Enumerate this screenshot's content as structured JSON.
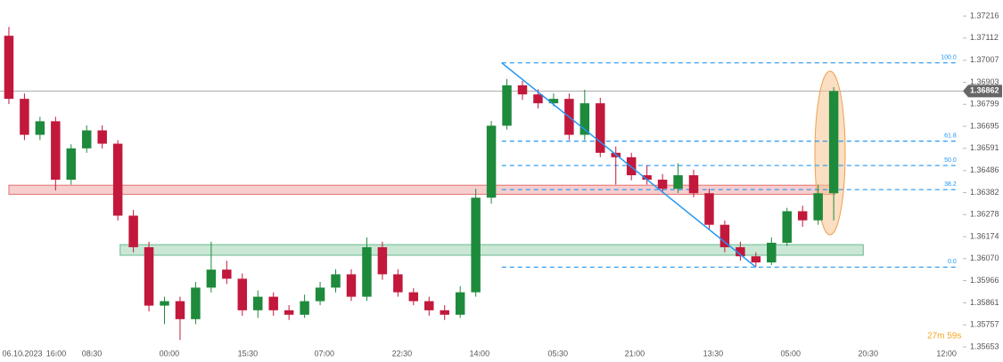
{
  "chart_data": {
    "type": "candlestick",
    "open": [
      1.37123,
      1.36825,
      1.36655,
      1.36719,
      1.36443,
      1.36591,
      1.36676,
      1.36613,
      1.36273,
      1.36124,
      1.35848,
      1.35869,
      1.35784,
      1.35933,
      1.36018,
      1.35975,
      1.35826,
      1.3589,
      1.35826,
      1.35805,
      1.35869,
      1.35933,
      1.35996,
      1.3589,
      1.36124,
      1.35996,
      1.35911,
      1.35869,
      1.35826,
      1.35805,
      1.35911,
      1.36358,
      1.36698,
      1.36889,
      1.36846,
      1.36804,
      1.36825,
      1.36655,
      1.36804,
      1.3657,
      1.36549,
      1.36464,
      1.36443,
      1.364,
      1.36464,
      1.36379,
      1.3623,
      1.36124,
      1.36081,
      1.36052,
      1.36145,
      1.36294,
      1.36251,
      1.36379
    ],
    "high": [
      1.37165,
      1.3685,
      1.3674,
      1.3674,
      1.3661,
      1.367,
      1.367,
      1.3663,
      1.363,
      1.3615,
      1.3589,
      1.3589,
      1.3596,
      1.3615,
      1.3606,
      1.36,
      1.3592,
      1.3591,
      1.3585,
      1.359,
      1.3596,
      1.3602,
      1.3602,
      1.3617,
      1.3615,
      1.3602,
      1.3593,
      1.3589,
      1.3585,
      1.3594,
      1.364,
      1.3672,
      1.36919,
      1.3691,
      1.3687,
      1.3685,
      1.3685,
      1.36868,
      1.3683,
      1.366,
      1.3657,
      1.3651,
      1.3647,
      1.3652,
      1.3649,
      1.364,
      1.3625,
      1.3615,
      1.361,
      1.3617,
      1.3631,
      1.3632,
      1.3642,
      1.3688
    ],
    "low": [
      1.368,
      1.3663,
      1.3663,
      1.36392,
      1.3642,
      1.3657,
      1.3659,
      1.3625,
      1.361,
      1.3582,
      1.3576,
      1.35686,
      1.3576,
      1.3591,
      1.3595,
      1.358,
      1.3579,
      1.358,
      1.3578,
      1.3579,
      1.3585,
      1.3591,
      1.3587,
      1.3587,
      1.3597,
      1.3589,
      1.3585,
      1.358,
      1.3578,
      1.3579,
      1.3589,
      1.3633,
      1.3668,
      1.3682,
      1.3678,
      1.3679,
      1.3663,
      1.3663,
      1.3655,
      1.3642,
      1.3644,
      1.3642,
      1.3638,
      1.3638,
      1.3636,
      1.3621,
      1.361,
      1.3606,
      1.3603,
      1.3604,
      1.3613,
      1.3622,
      1.3623,
      1.36251
    ],
    "close": [
      1.36825,
      1.36655,
      1.36719,
      1.36443,
      1.36591,
      1.36676,
      1.36613,
      1.36273,
      1.36124,
      1.35848,
      1.35869,
      1.35784,
      1.35933,
      1.36018,
      1.35975,
      1.35826,
      1.3589,
      1.35826,
      1.35805,
      1.35869,
      1.35933,
      1.35996,
      1.3589,
      1.36124,
      1.35996,
      1.35911,
      1.35869,
      1.35826,
      1.35805,
      1.35911,
      1.36358,
      1.36698,
      1.36889,
      1.36846,
      1.36804,
      1.36825,
      1.36655,
      1.36804,
      1.3657,
      1.36549,
      1.36464,
      1.36443,
      1.364,
      1.36464,
      1.36379,
      1.3623,
      1.36124,
      1.36081,
      1.36052,
      1.36145,
      1.36294,
      1.36251,
      1.36379,
      1.36862
    ],
    "up_color": "#1e8a3c",
    "down_color": "#c2183c",
    "xlim": [
      -0.57,
      61.3
    ],
    "xticks": [
      {
        "value": 0.86,
        "label": "06.10.2023"
      },
      {
        "value": 3.04,
        "label": "16:00"
      },
      {
        "value": 5.33,
        "label": "08:30"
      },
      {
        "value": 10.31,
        "label": "00:00"
      },
      {
        "value": 15.35,
        "label": "15:30"
      },
      {
        "value": 20.27,
        "label": "07:00"
      },
      {
        "value": 25.26,
        "label": "22:30"
      },
      {
        "value": 30.24,
        "label": "14:00"
      },
      {
        "value": 35.28,
        "label": "05:30"
      },
      {
        "value": 40.21,
        "label": "21:00"
      },
      {
        "value": 45.25,
        "label": "13:30"
      },
      {
        "value": 50.23,
        "label": "05:00"
      },
      {
        "value": 55.21,
        "label": "20:30"
      },
      {
        "value": 60.25,
        "label": "12:00"
      }
    ],
    "ylim": [
      1.35611,
      1.37292
    ],
    "yticks": [
      1.37216,
      1.37112,
      1.37007,
      1.36903,
      1.36799,
      1.36695,
      1.36591,
      1.36486,
      1.36382,
      1.36278,
      1.36174,
      {
        "value": 1.3607,
        "label": "1.36070"
      },
      1.35966,
      1.35861,
      1.35757,
      1.35653
    ],
    "zones": [
      {
        "x": [
          0.0,
          53.1
        ],
        "price": [
          1.36374,
          1.36417
        ],
        "color": "#e57373"
      },
      {
        "x": [
          7.15,
          54.9
        ],
        "price": [
          1.36086,
          1.36136
        ],
        "color": "#66bb8a"
      }
    ],
    "fib": {
      "x": [
        31.67,
        61.0
      ],
      "color": "#2196f3",
      "levels": [
        {
          "label": "100.0",
          "price": 1.36995
        },
        {
          "label": "61.8",
          "price": 1.36625
        },
        {
          "label": "50.0",
          "price": 1.3651
        },
        {
          "label": "38.2",
          "price": 1.36396
        },
        {
          "label": "0.0",
          "price": 1.3603
        }
      ]
    },
    "trend_line": {
      "x": [
        31.67,
        48.0
      ],
      "price": [
        1.36995,
        1.3603
      ],
      "color": "#2196f3"
    },
    "countdown": "27m 59s"
  }
}
